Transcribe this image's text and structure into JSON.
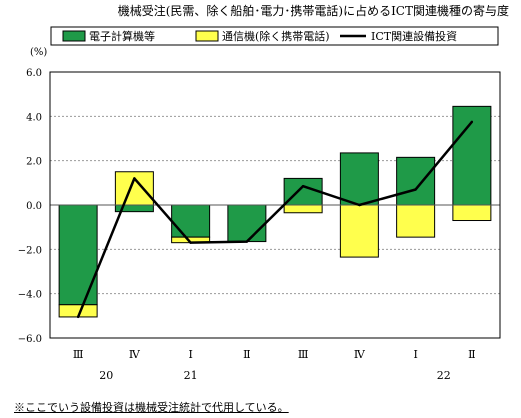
{
  "chart_data": {
    "type": "bar",
    "title": "機械受注(民需、除く船舶･電力･携帯電話)に占めるICT関連機種の寄与度",
    "ylabel": "(%)",
    "xlabel": "",
    "ylim": [
      -6.0,
      6.0
    ],
    "yticks": [
      "6.0",
      "4.0",
      "2.0",
      "0.0",
      "−2.0",
      "−4.0",
      "−6.0"
    ],
    "ytick_values": [
      6,
      4,
      2,
      0,
      -2,
      -4,
      -6
    ],
    "categories": [
      "Ⅲ",
      "Ⅳ",
      "Ⅰ",
      "Ⅱ",
      "Ⅲ",
      "Ⅳ",
      "Ⅰ",
      "Ⅱ"
    ],
    "year_labels": [
      {
        "label": "20",
        "index": 0.5
      },
      {
        "label": "21",
        "index": 2.0
      },
      {
        "label": "22",
        "index": 6.5
      }
    ],
    "series": [
      {
        "name": "電子計算機等",
        "kind": "bar",
        "color": "#1f9a48",
        "values": [
          -4.5,
          -0.3,
          -1.45,
          -1.65,
          1.2,
          2.35,
          2.15,
          4.45
        ]
      },
      {
        "name": "通信機(除く携帯電話)",
        "kind": "bar",
        "color": "#ffff4d",
        "values": [
          -0.55,
          1.5,
          -0.25,
          0.0,
          -0.35,
          -2.35,
          -1.45,
          -0.7
        ]
      },
      {
        "name": "ICT関連設備投資",
        "kind": "line",
        "color": "#000000",
        "values": [
          -5.05,
          1.2,
          -1.7,
          -1.65,
          0.85,
          0.0,
          0.7,
          3.75
        ]
      }
    ],
    "grid": true,
    "legend_position": "top"
  },
  "note": "※ここでいう設備投資は機械受注統計で代用している。"
}
